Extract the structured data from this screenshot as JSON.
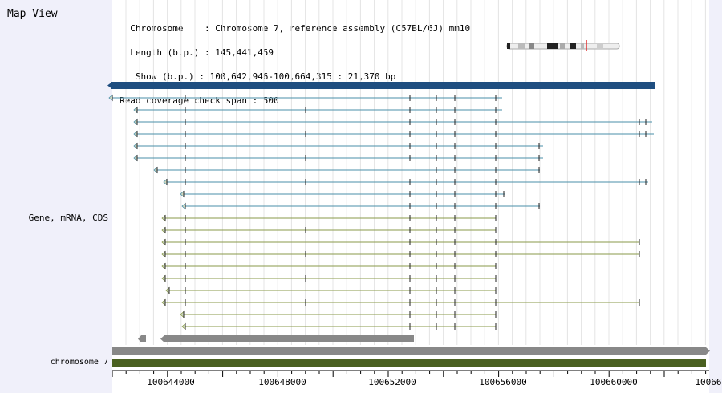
{
  "map_title": "Map View",
  "header": {
    "line1": "  Chromosome    : Chromosome 7, reference assembly (C57BL/6J) mm10",
    "line2": "  Length (b.p.) : 145,441,459",
    "line3": "   Show (b.p.) : 100,642,946-100,664,315 : 21,370 bp",
    "line4": "Read coverage check span : 500"
  },
  "track_label": "Gene, mRNA, CDS",
  "chromosome_label": "chromosome 7",
  "ruler": {
    "labels": [
      "100644000",
      "100648000",
      "100652000",
      "100656000",
      "100660000",
      "10066"
    ]
  },
  "colors": {
    "gene": "#1f4e80",
    "mrna": "#4a8fa8",
    "cds": "#8a9a4a",
    "other": "#888888",
    "chromosome": "#4a6020",
    "panel": "#f0f0fa"
  }
}
